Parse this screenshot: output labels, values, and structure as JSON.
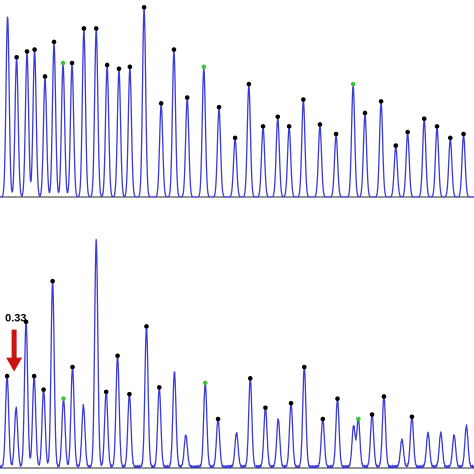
{
  "colors": {
    "trace": "#3b3bd6",
    "peak_marker": "#000000",
    "highlight_marker": "#3bc43b",
    "baseline": "#555555",
    "arrow": "#c81414"
  },
  "chart_data": [
    {
      "type": "line",
      "title": "",
      "xlabel": "",
      "ylabel": "",
      "grid": false,
      "xlim": [
        0,
        100
      ],
      "ylim": [
        0,
        100
      ],
      "peaks": [
        {
          "x": 1.6,
          "y": 94,
          "marked": false
        },
        {
          "x": 3.5,
          "y": 72,
          "marked": true
        },
        {
          "x": 5.7,
          "y": 75,
          "marked": true
        },
        {
          "x": 7.3,
          "y": 76,
          "marked": true
        },
        {
          "x": 9.5,
          "y": 62,
          "marked": true
        },
        {
          "x": 11.4,
          "y": 80,
          "marked": true
        },
        {
          "x": 13.3,
          "y": 69,
          "marked": true,
          "highlight": true
        },
        {
          "x": 15.2,
          "y": 69,
          "marked": true
        },
        {
          "x": 17.7,
          "y": 87,
          "marked": true
        },
        {
          "x": 20.3,
          "y": 87,
          "marked": true
        },
        {
          "x": 22.6,
          "y": 68,
          "marked": true
        },
        {
          "x": 25.1,
          "y": 66,
          "marked": true
        },
        {
          "x": 27.4,
          "y": 67,
          "marked": true
        },
        {
          "x": 30.4,
          "y": 98,
          "marked": true
        },
        {
          "x": 34.0,
          "y": 48,
          "marked": true
        },
        {
          "x": 36.7,
          "y": 76,
          "marked": true
        },
        {
          "x": 39.5,
          "y": 51,
          "marked": true
        },
        {
          "x": 43.0,
          "y": 67,
          "marked": true,
          "highlight": true
        },
        {
          "x": 46.2,
          "y": 46,
          "marked": true
        },
        {
          "x": 49.6,
          "y": 30,
          "marked": true
        },
        {
          "x": 52.5,
          "y": 58,
          "marked": true
        },
        {
          "x": 55.5,
          "y": 36,
          "marked": true
        },
        {
          "x": 58.6,
          "y": 41,
          "marked": true
        },
        {
          "x": 61.0,
          "y": 36,
          "marked": true
        },
        {
          "x": 64.0,
          "y": 50,
          "marked": true
        },
        {
          "x": 67.5,
          "y": 37,
          "marked": true
        },
        {
          "x": 70.9,
          "y": 32,
          "marked": true
        },
        {
          "x": 74.5,
          "y": 58,
          "marked": true,
          "highlight": true
        },
        {
          "x": 77.0,
          "y": 43,
          "marked": true
        },
        {
          "x": 80.4,
          "y": 49,
          "marked": true
        },
        {
          "x": 83.5,
          "y": 26,
          "marked": true
        },
        {
          "x": 86.0,
          "y": 33,
          "marked": true
        },
        {
          "x": 89.5,
          "y": 40,
          "marked": true
        },
        {
          "x": 92.2,
          "y": 36,
          "marked": true
        },
        {
          "x": 95.0,
          "y": 30,
          "marked": true
        },
        {
          "x": 97.8,
          "y": 32,
          "marked": true
        }
      ]
    },
    {
      "type": "line",
      "title": "",
      "xlabel": "",
      "ylabel": "",
      "grid": false,
      "xlim": [
        0,
        100
      ],
      "ylim": [
        0,
        100
      ],
      "annotation": {
        "text": "0.33",
        "peak_index": 0
      },
      "peaks": [
        {
          "x": 1.5,
          "y": 40,
          "marked": true
        },
        {
          "x": 3.4,
          "y": 26,
          "marked": false
        },
        {
          "x": 5.5,
          "y": 64,
          "marked": true
        },
        {
          "x": 7.2,
          "y": 40,
          "marked": true
        },
        {
          "x": 9.2,
          "y": 34,
          "marked": true
        },
        {
          "x": 11.1,
          "y": 82,
          "marked": true
        },
        {
          "x": 13.4,
          "y": 30,
          "marked": true,
          "highlight": true
        },
        {
          "x": 15.3,
          "y": 44,
          "marked": true
        },
        {
          "x": 17.6,
          "y": 27,
          "marked": false
        },
        {
          "x": 20.3,
          "y": 100,
          "marked": false
        },
        {
          "x": 22.4,
          "y": 33,
          "marked": true
        },
        {
          "x": 24.8,
          "y": 49,
          "marked": true
        },
        {
          "x": 27.3,
          "y": 32,
          "marked": true
        },
        {
          "x": 30.9,
          "y": 62,
          "marked": true
        },
        {
          "x": 33.6,
          "y": 35,
          "marked": true
        },
        {
          "x": 36.8,
          "y": 42,
          "marked": false
        },
        {
          "x": 39.2,
          "y": 14,
          "marked": false
        },
        {
          "x": 43.3,
          "y": 37,
          "marked": true,
          "highlight": true
        },
        {
          "x": 46.0,
          "y": 21,
          "marked": true
        },
        {
          "x": 49.9,
          "y": 15,
          "marked": false
        },
        {
          "x": 52.8,
          "y": 39,
          "marked": true
        },
        {
          "x": 56.0,
          "y": 26,
          "marked": true
        },
        {
          "x": 58.7,
          "y": 21,
          "marked": false
        },
        {
          "x": 61.4,
          "y": 28,
          "marked": true
        },
        {
          "x": 64.2,
          "y": 44,
          "marked": true
        },
        {
          "x": 68.1,
          "y": 21,
          "marked": true
        },
        {
          "x": 71.2,
          "y": 30,
          "marked": true
        },
        {
          "x": 74.6,
          "y": 18,
          "marked": false
        },
        {
          "x": 75.6,
          "y": 21,
          "marked": true,
          "highlight": true
        },
        {
          "x": 78.5,
          "y": 23,
          "marked": true
        },
        {
          "x": 81.0,
          "y": 31,
          "marked": true
        },
        {
          "x": 84.8,
          "y": 12,
          "marked": false
        },
        {
          "x": 86.9,
          "y": 22,
          "marked": true
        },
        {
          "x": 90.3,
          "y": 15,
          "marked": false
        },
        {
          "x": 93.0,
          "y": 15,
          "marked": false
        },
        {
          "x": 95.8,
          "y": 14,
          "marked": false
        },
        {
          "x": 98.4,
          "y": 18,
          "marked": false
        }
      ]
    }
  ]
}
